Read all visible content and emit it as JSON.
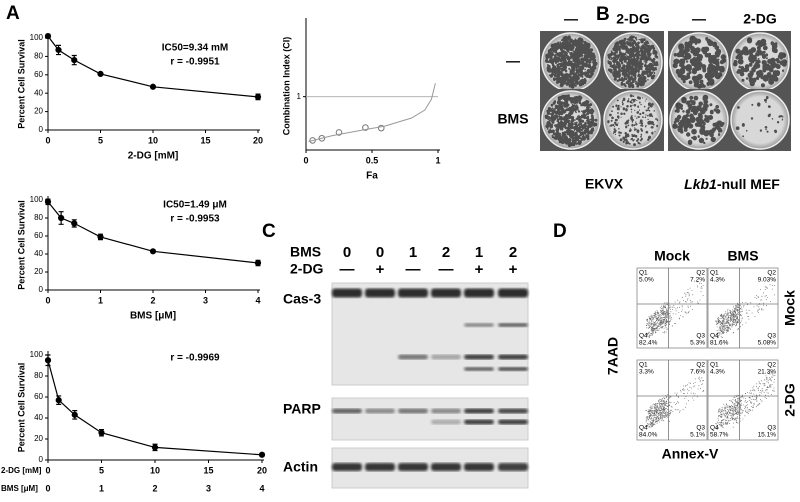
{
  "panel_labels": [
    "A",
    "B",
    "C",
    "D"
  ],
  "chart_data": [
    {
      "type": "line",
      "ylabel": "Percent Cell Survival",
      "xlabel": "2-DG [mM]",
      "annotations": [
        "IC50=9.34 mM",
        "r = -0.9951"
      ],
      "series": [
        {
          "x": [
            0,
            1,
            2.5,
            5,
            10,
            20
          ],
          "values": [
            102,
            87,
            76,
            61,
            47,
            36
          ],
          "errors": [
            2,
            5,
            5,
            1,
            1,
            3
          ],
          "color": "#000000"
        }
      ],
      "xlim": [
        0,
        20
      ],
      "xticks": [
        0,
        5,
        10,
        15,
        20
      ],
      "ylim": [
        0,
        100
      ],
      "yticks": [
        0,
        20,
        40,
        60,
        80,
        100
      ]
    },
    {
      "type": "scatter",
      "ylabel": "Combination Index (CI)",
      "xlabel": "Fa",
      "series": [
        {
          "x": [
            0.05,
            0.12,
            0.25,
            0.45,
            0.57
          ],
          "values": [
            0.18,
            0.22,
            0.33,
            0.42,
            0.41
          ],
          "color": "#777777",
          "marker": "open-circle"
        },
        {
          "x": [
            0.02,
            0.2,
            0.4,
            0.6,
            0.8,
            0.9,
            0.95,
            0.98
          ],
          "values": [
            0.16,
            0.27,
            0.36,
            0.45,
            0.6,
            0.75,
            0.95,
            1.25
          ],
          "color": "#999999",
          "marker": "none"
        }
      ],
      "xlim": [
        0,
        1
      ],
      "xticks": [
        0,
        0.5,
        1
      ],
      "ylim": [
        0,
        2.4
      ],
      "yticks": [
        1
      ],
      "grid": true
    },
    {
      "type": "line",
      "ylabel": "Percent Cell Survival",
      "xlabel": "BMS [μM]",
      "annotations": [
        "IC50=1.49 μM",
        "r = -0.9953"
      ],
      "series": [
        {
          "x": [
            0,
            0.25,
            0.5,
            1,
            2,
            4
          ],
          "values": [
            98,
            80,
            74,
            59,
            43,
            30
          ],
          "errors": [
            3,
            7,
            4,
            3,
            1,
            3
          ],
          "color": "#000000"
        }
      ],
      "xlim": [
        0,
        4
      ],
      "xticks": [
        0,
        1,
        2,
        3,
        4
      ],
      "ylim": [
        0,
        100
      ],
      "yticks": [
        0,
        20,
        40,
        60,
        80,
        100
      ]
    },
    {
      "type": "line",
      "ylabel": "Percent Cell Survival",
      "xlabel": "2-DG [mM]",
      "x2label": "BMS [μM]",
      "annotations": [
        "r = -0.9969"
      ],
      "series": [
        {
          "x": [
            0,
            1,
            2.5,
            5,
            10,
            20
          ],
          "values": [
            95,
            57,
            43,
            26,
            12,
            5
          ],
          "errors": [
            5,
            4,
            4,
            3,
            3,
            1
          ],
          "color": "#000000"
        }
      ],
      "xlim": [
        0,
        20
      ],
      "xticks": [
        0,
        5,
        10,
        15,
        20
      ],
      "x2lim": [
        0,
        4
      ],
      "x2ticks": [
        0,
        1,
        2,
        3,
        4
      ],
      "ylim": [
        0,
        100
      ],
      "yticks": [
        0,
        20,
        40,
        60,
        80,
        100
      ]
    }
  ],
  "colony": {
    "col_labels": [
      "—",
      "2-DG",
      "—",
      "2-DG"
    ],
    "row_labels": [
      "—",
      "BMS"
    ],
    "cell_lines": [
      "EKVX",
      [
        "Lkb1",
        "-null MEF"
      ]
    ]
  },
  "western": {
    "rows": [
      {
        "name": "BMS",
        "lanes": [
          "0",
          "0",
          "1",
          "2",
          "1",
          "2"
        ]
      },
      {
        "name": "2-DG",
        "lanes": [
          "—",
          "+",
          "—",
          "—",
          "+",
          "+"
        ]
      }
    ],
    "blots": [
      "Cas-3",
      "PARP",
      "Actin"
    ]
  },
  "flow": {
    "columns": [
      "Mock",
      "BMS"
    ],
    "rows": [
      "Mock",
      "2-DG"
    ],
    "y_label": "7AAD",
    "x_label": "Annex-V",
    "plots": [
      [
        {
          "name": "Q1",
          "value": "5.0%"
        },
        {
          "name": "Q2",
          "value": "7.2%"
        },
        {
          "name": "Q4",
          "value": "82.4%"
        },
        {
          "name": "Q3",
          "value": "5.3%"
        }
      ],
      [
        {
          "name": "Q1",
          "value": "4.3%"
        },
        {
          "name": "Q2",
          "value": "9.03%"
        },
        {
          "name": "Q4",
          "value": "81.6%"
        },
        {
          "name": "Q3",
          "value": "5.08%"
        }
      ],
      [
        {
          "name": "Q1",
          "value": "3.3%"
        },
        {
          "name": "Q2",
          "value": "7.6%"
        },
        {
          "name": "Q4",
          "value": "84.0%"
        },
        {
          "name": "Q3",
          "value": "5.1%"
        }
      ],
      [
        {
          "name": "Q1",
          "value": "4.3%"
        },
        {
          "name": "Q2",
          "value": "21.3%"
        },
        {
          "name": "Q4",
          "value": "58.7%"
        },
        {
          "name": "Q3",
          "value": "15.1%"
        }
      ]
    ]
  }
}
